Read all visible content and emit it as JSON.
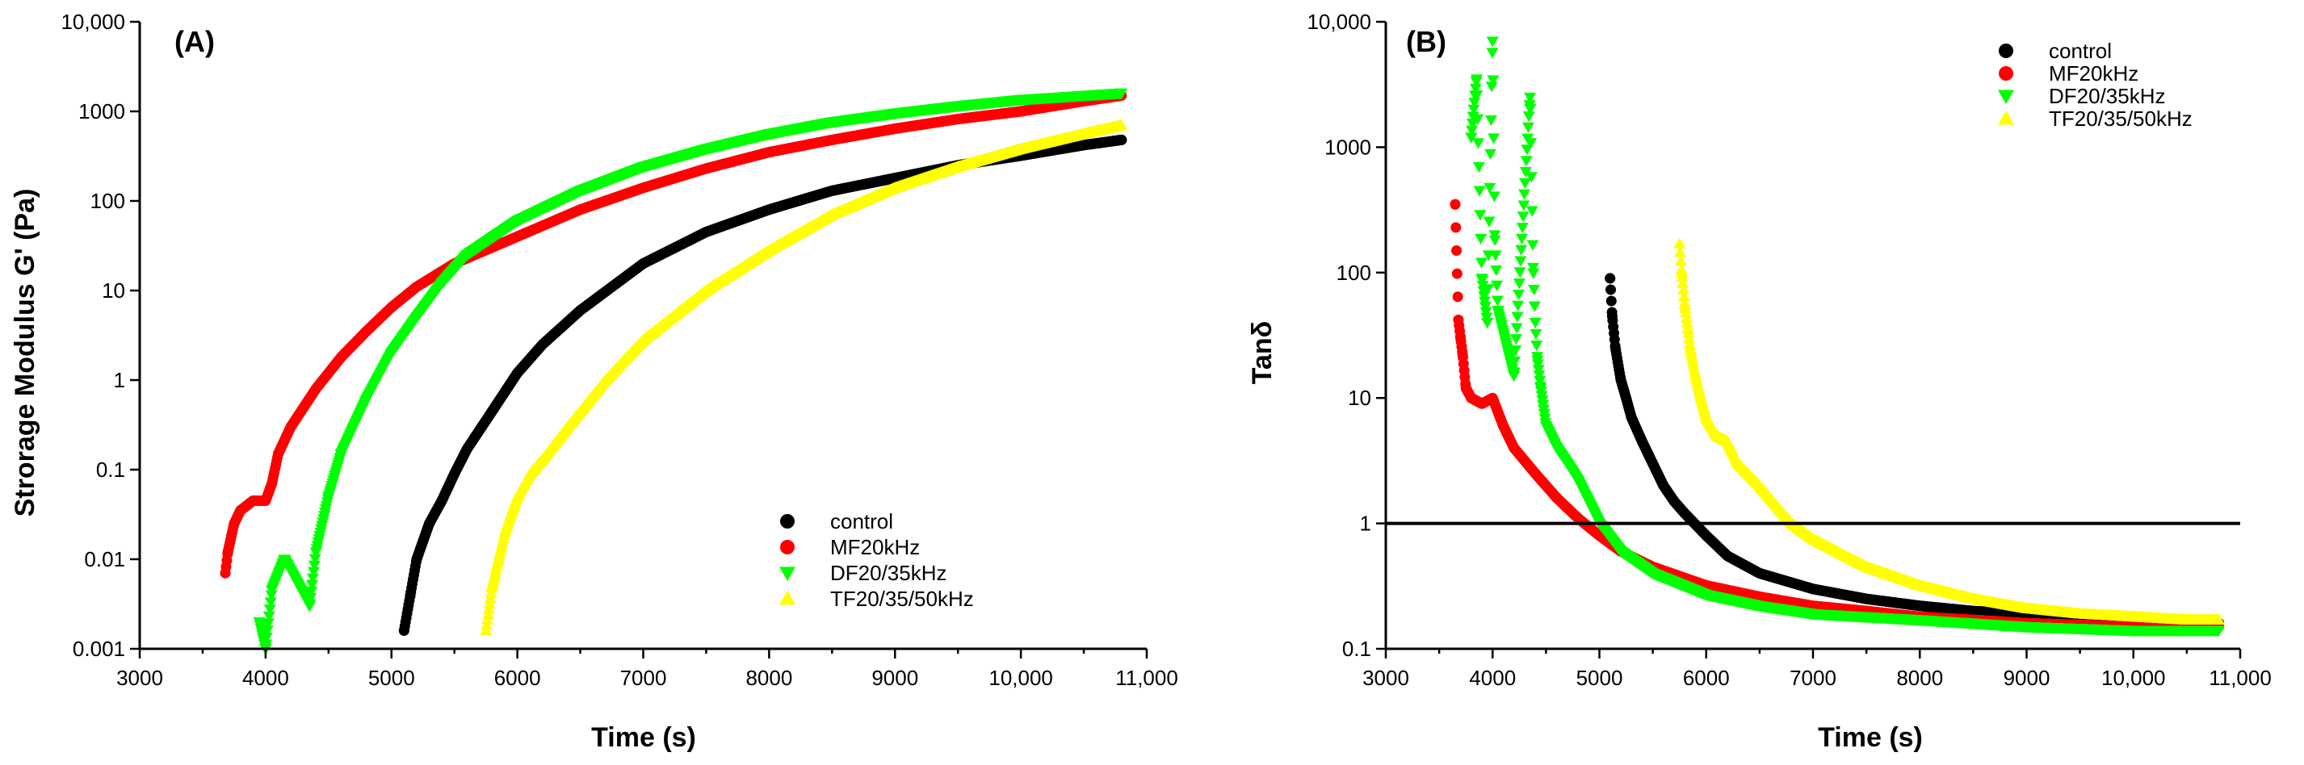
{
  "chart_data": [
    {
      "type": "scatter",
      "panel_label": "(A)",
      "xlabel": "Time (s)",
      "ylabel": "Strorage Modulus G' (Pa)",
      "xlim": [
        3000,
        11000
      ],
      "ylim": [
        0.001,
        10000
      ],
      "yscale": "log",
      "xticks": [
        3000,
        4000,
        5000,
        6000,
        7000,
        8000,
        9000,
        10000,
        11000
      ],
      "xtick_labels": [
        "3000",
        "4000",
        "5000",
        "6000",
        "7000",
        "8000",
        "9000",
        "10,000",
        "11,000"
      ],
      "yticks": [
        0.001,
        0.01,
        0.1,
        1,
        10,
        100,
        1000,
        10000
      ],
      "ytick_labels": [
        "0.001",
        "0.01",
        "0.1",
        "1",
        "10",
        "100",
        "1000",
        "10,000"
      ],
      "legend_position": "lower-right",
      "series": [
        {
          "name": "control",
          "color": "#000000",
          "marker": "circle",
          "x": [
            5100,
            5150,
            5200,
            5300,
            5400,
            5500,
            5600,
            5800,
            6000,
            6200,
            6500,
            7000,
            7500,
            8000,
            8500,
            9000,
            9500,
            10000,
            10500,
            10800
          ],
          "y": [
            0.0016,
            0.004,
            0.01,
            0.025,
            0.045,
            0.09,
            0.17,
            0.45,
            1.2,
            2.5,
            6,
            20,
            45,
            80,
            130,
            180,
            250,
            320,
            420,
            480
          ]
        },
        {
          "name": "MF20kHz",
          "color": "#ff0000",
          "marker": "circle",
          "x": [
            3680,
            3700,
            3750,
            3800,
            3900,
            4000,
            4050,
            4100,
            4200,
            4400,
            4600,
            4800,
            5000,
            5200,
            5500,
            6000,
            6500,
            7000,
            7500,
            8000,
            8500,
            9000,
            9500,
            10000,
            10500,
            10800
          ],
          "y": [
            0.007,
            0.012,
            0.025,
            0.035,
            0.045,
            0.045,
            0.07,
            0.15,
            0.3,
            0.8,
            1.8,
            3.5,
            6.5,
            11,
            20,
            40,
            80,
            140,
            230,
            350,
            480,
            640,
            820,
            1000,
            1300,
            1500
          ]
        },
        {
          "name": "DF20/35kHz",
          "color": "#00ff00",
          "marker": "triangle-down",
          "x": [
            3950,
            4000,
            4050,
            4150,
            4350,
            4400,
            4500,
            4600,
            4800,
            5000,
            5200,
            5400,
            5600,
            6000,
            6500,
            7000,
            7500,
            8000,
            8500,
            9000,
            9500,
            10000,
            10500,
            10800
          ],
          "y": [
            0.002,
            0.001,
            0.0045,
            0.01,
            0.003,
            0.012,
            0.05,
            0.15,
            0.6,
            2,
            5,
            12,
            25,
            60,
            130,
            240,
            380,
            560,
            760,
            950,
            1150,
            1350,
            1500,
            1600
          ]
        },
        {
          "name": "TF20/35/50kHz",
          "color": "#ffff00",
          "marker": "triangle-up",
          "x": [
            5750,
            5800,
            5850,
            5900,
            6000,
            6100,
            6200,
            6400,
            6700,
            7000,
            7500,
            8000,
            8500,
            9000,
            9500,
            10000,
            10500,
            10800
          ],
          "y": [
            0.0016,
            0.005,
            0.01,
            0.02,
            0.05,
            0.09,
            0.13,
            0.3,
            1,
            2.8,
            10,
            28,
            70,
            140,
            240,
            380,
            560,
            700
          ]
        }
      ]
    },
    {
      "type": "scatter",
      "panel_label": "(B)",
      "xlabel": "Time (s)",
      "ylabel": "Tanδ",
      "xlim": [
        3000,
        11000
      ],
      "ylim": [
        0.1,
        10000
      ],
      "yscale": "log",
      "xticks": [
        3000,
        4000,
        5000,
        6000,
        7000,
        8000,
        9000,
        10000,
        11000
      ],
      "xtick_labels": [
        "3000",
        "4000",
        "5000",
        "6000",
        "7000",
        "8000",
        "9000",
        "10,000",
        "11,000"
      ],
      "yticks": [
        0.1,
        1,
        10,
        100,
        1000,
        10000
      ],
      "ytick_labels": [
        "0.1",
        "1",
        "10",
        "100",
        "1000",
        "10,000"
      ],
      "reference_line_y": 1,
      "legend_position": "top-right",
      "series": [
        {
          "name": "control",
          "color": "#000000",
          "marker": "circle",
          "x": [
            5100,
            5120,
            5150,
            5200,
            5250,
            5300,
            5400,
            5500,
            5600,
            5700,
            5800,
            6000,
            6200,
            6500,
            7000,
            7500,
            8000,
            8500,
            9000,
            9500,
            10000,
            10500,
            10800
          ],
          "y": [
            90,
            45,
            25,
            14,
            10,
            7,
            4.5,
            3,
            2,
            1.5,
            1.2,
            0.8,
            0.55,
            0.4,
            0.3,
            0.25,
            0.22,
            0.2,
            0.19,
            0.18,
            0.17,
            0.16,
            0.16
          ]
        },
        {
          "name": "MF20kHz",
          "color": "#ff0000",
          "marker": "circle",
          "x": [
            3650,
            3680,
            3700,
            3720,
            3750,
            3800,
            3900,
            4000,
            4100,
            4200,
            4400,
            4600,
            4800,
            5000,
            5200,
            5500,
            6000,
            6500,
            7000,
            7500,
            8000,
            8500,
            9000,
            10000,
            10800
          ],
          "y": [
            350,
            42,
            30,
            22,
            12,
            10,
            9,
            10,
            6,
            4,
            2.5,
            1.6,
            1.1,
            0.8,
            0.6,
            0.45,
            0.32,
            0.26,
            0.22,
            0.2,
            0.18,
            0.17,
            0.16,
            0.15,
            0.15
          ]
        },
        {
          "name": "DF20/35kHz",
          "color": "#00ff00",
          "marker": "triangle-down",
          "x": [
            3800,
            3850,
            3900,
            3950,
            4000,
            4020,
            4050,
            4200,
            4350,
            4380,
            4400,
            4420,
            4450,
            4500,
            4600,
            4700,
            4800,
            5000,
            5200,
            5500,
            6000,
            6500,
            7000,
            8000,
            9000,
            10000,
            10800
          ],
          "y": [
            1200,
            3500,
            90,
            40,
            7000,
            200,
            50,
            15,
            2500,
            110,
            40,
            20,
            12,
            6,
            4,
            3,
            2.2,
            1,
            0.6,
            0.4,
            0.27,
            0.22,
            0.19,
            0.17,
            0.15,
            0.14,
            0.14
          ]
        },
        {
          "name": "TF20/35/50kHz",
          "color": "#ffff00",
          "marker": "triangle-up",
          "x": [
            5750,
            5770,
            5800,
            5830,
            5850,
            5900,
            5950,
            6000,
            6100,
            6200,
            6300,
            6500,
            6800,
            7000,
            7500,
            8000,
            8500,
            9000,
            9500,
            10000,
            10500,
            10800
          ],
          "y": [
            170,
            100,
            55,
            35,
            25,
            15,
            10,
            7,
            5,
            4.5,
            3,
            2,
            1,
            0.75,
            0.45,
            0.32,
            0.25,
            0.21,
            0.19,
            0.18,
            0.17,
            0.17
          ]
        }
      ]
    }
  ]
}
